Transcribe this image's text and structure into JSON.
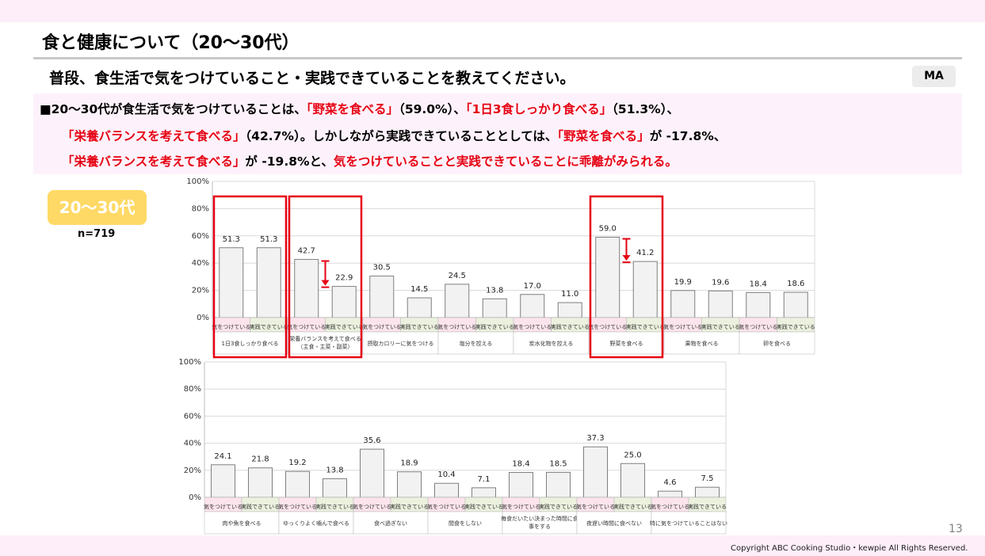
{
  "page": {
    "title": "食と健康について（20～30代）",
    "question": "普段、食生活で気をつけていること・実践できていることを教えてください。",
    "badge": "MA",
    "page_number": "13",
    "copyright": "Copyright ABC Cooking Studio・kewpie All Rights Reserved."
  },
  "summary": {
    "line1": [
      {
        "text": "■20～30代が食生活で気をつけていることは、",
        "red": false
      },
      {
        "text": "「野菜を食べる」",
        "red": true
      },
      {
        "text": "（59.0%）、",
        "red": false
      },
      {
        "text": "「1日3食しっかり食べる」",
        "red": true
      },
      {
        "text": "（51.3%）、",
        "red": false
      }
    ],
    "line2": [
      {
        "text": "「栄養バランスを考えて食べる」",
        "red": true
      },
      {
        "text": "（42.7%）。しかしながら実践できていることとしては、",
        "red": false
      },
      {
        "text": "「野菜を食べる」",
        "red": true
      },
      {
        "text": "が -17.8%、",
        "red": false
      }
    ],
    "line3": [
      {
        "text": "「栄養バランスを考えて食べる」",
        "red": true
      },
      {
        "text": "が -19.8%と、",
        "red": false
      },
      {
        "text": "気をつけていることと実践できていることに乖離がみられる。",
        "red": true
      }
    ]
  },
  "segment": {
    "label": "20～30代",
    "n": "n=719"
  },
  "chart_data": [
    {
      "type": "bar",
      "series": [
        {
          "name": "気をつけている"
        },
        {
          "name": "実践できている"
        }
      ],
      "categories": [
        "1日3食しっかり食べる",
        "栄養バランスを考えて食べる\n（主食・主菜・副菜）",
        "摂取カロリーに気をつける",
        "塩分を控える",
        "炭水化物を控える",
        "野菜を食べる",
        "果物を食べる",
        "卵を食べる"
      ],
      "values": [
        [
          51.3,
          51.3
        ],
        [
          42.7,
          22.9
        ],
        [
          30.5,
          14.5
        ],
        [
          24.5,
          13.8
        ],
        [
          17.0,
          11.0
        ],
        [
          59.0,
          41.2
        ],
        [
          19.9,
          19.6
        ],
        [
          18.4,
          18.6
        ]
      ],
      "value_labels": [
        [
          "51.3",
          "51.3"
        ],
        [
          "42.7",
          "22.9"
        ],
        [
          "30.5",
          "14.5"
        ],
        [
          "24.5",
          "13.8"
        ],
        [
          "17.0",
          "11.0"
        ],
        [
          "59.0",
          "41.2"
        ],
        [
          "19.9",
          "19.6"
        ],
        [
          "18.4",
          "18.6"
        ]
      ],
      "yticks": [
        "0%",
        "20%",
        "40%",
        "60%",
        "80%",
        "100%"
      ],
      "ylim": [
        0,
        100
      ],
      "highlighted_categories": [
        0,
        1,
        5
      ],
      "gap_arrows": [
        1,
        5
      ],
      "grid": true
    },
    {
      "type": "bar",
      "series": [
        {
          "name": "気をつけている"
        },
        {
          "name": "実践できている"
        }
      ],
      "categories": [
        "肉や魚を食べる",
        "ゆっくりよく噛んで食べる",
        "食べ過ぎない",
        "間食をしない",
        "毎食だいたい決まった時間に食\n事をする",
        "夜遅い時間に食べない",
        "特に気をつけていることはない"
      ],
      "values": [
        [
          24.1,
          21.8
        ],
        [
          19.2,
          13.8
        ],
        [
          35.6,
          18.9
        ],
        [
          10.4,
          7.1
        ],
        [
          18.4,
          18.5
        ],
        [
          37.3,
          25.0
        ],
        [
          4.6,
          7.5
        ]
      ],
      "value_labels": [
        [
          "24.1",
          "21.8"
        ],
        [
          "19.2",
          "13.8"
        ],
        [
          "35.6",
          "18.9"
        ],
        [
          "10.4",
          "7.1"
        ],
        [
          "18.4",
          "18.5"
        ],
        [
          "37.3",
          "25.0"
        ],
        [
          "4.6",
          "7.5"
        ]
      ],
      "yticks": [
        "0%",
        "20%",
        "40%",
        "60%",
        "80%",
        "100%"
      ],
      "ylim": [
        0,
        100
      ],
      "grid": true
    }
  ],
  "colors": {
    "bar_fill": "#f2f2f2",
    "bar_stroke": "#7f7f7f",
    "series1_bg": "#fce4ec",
    "series2_bg": "#ebf1de",
    "highlight": "#e60012",
    "accent_text": "#e60012"
  }
}
